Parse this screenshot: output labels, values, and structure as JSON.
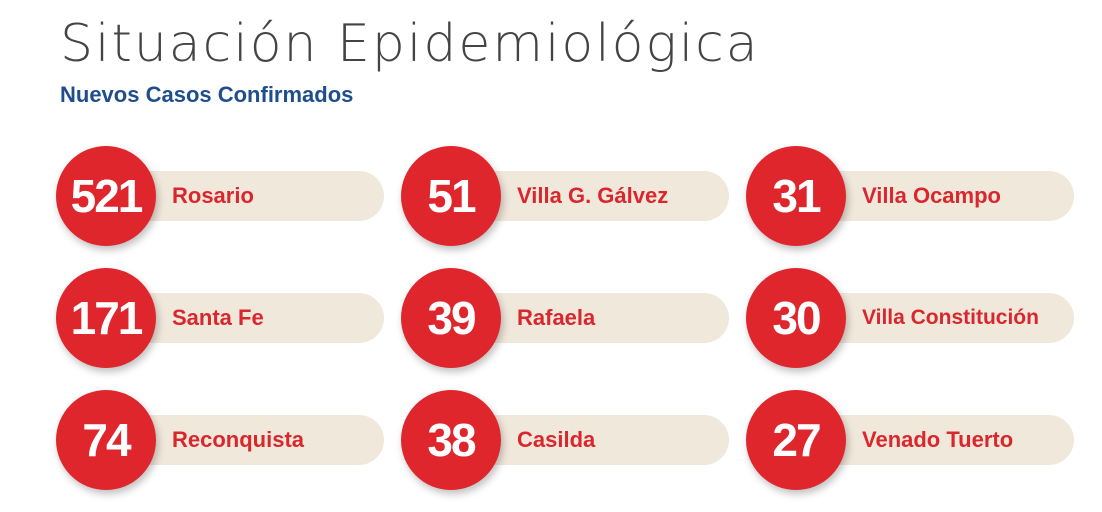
{
  "header": {
    "title": "Situación Epidemiológica",
    "subtitle": "Nuevos Casos Confirmados"
  },
  "colors": {
    "accent_red": "#e0262d",
    "label_red": "#d9272e",
    "pill_beige": "#f1e8dc",
    "subtitle_blue": "#1f4e8c",
    "title_gray": "#444444"
  },
  "cases": [
    {
      "count": "521",
      "city": "Rosario"
    },
    {
      "count": "51",
      "city": "Villa G. Gálvez"
    },
    {
      "count": "31",
      "city": "Villa Ocampo"
    },
    {
      "count": "171",
      "city": "Santa Fe"
    },
    {
      "count": "39",
      "city": "Rafaela"
    },
    {
      "count": "30",
      "city": "Villa Constitución"
    },
    {
      "count": "74",
      "city": "Reconquista"
    },
    {
      "count": "38",
      "city": "Casilda"
    },
    {
      "count": "27",
      "city": "Venado Tuerto"
    }
  ]
}
